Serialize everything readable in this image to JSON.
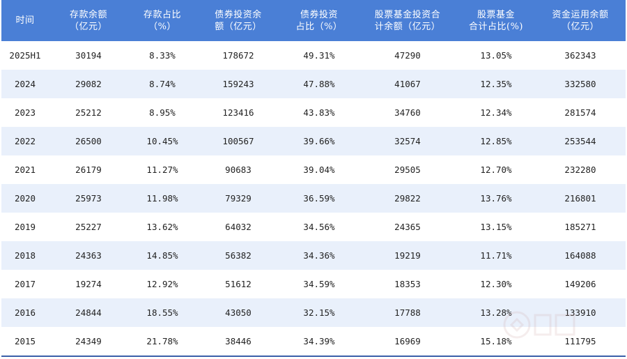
{
  "table": {
    "headers": [
      "时间",
      "存款余额\n（亿元）",
      "存款占比\n（%）",
      "债券投资余\n额（亿元）",
      "债券投资\n占比（%）",
      "股票基金投资合\n计余额（亿元）",
      "股票基金\n合计占比(%)",
      "资金运用余额\n（亿元）"
    ],
    "rows": [
      [
        "2025H1",
        "30194",
        "8.33%",
        "178672",
        "49.31%",
        "47290",
        "13.05%",
        "362343"
      ],
      [
        "2024",
        "29082",
        "8.74%",
        "159243",
        "47.88%",
        "41067",
        "12.35%",
        "332580"
      ],
      [
        "2023",
        "25212",
        "8.95%",
        "123416",
        "43.83%",
        "34760",
        "12.34%",
        "281574"
      ],
      [
        "2022",
        "26500",
        "10.45%",
        "100567",
        "39.66%",
        "32574",
        "12.85%",
        "253544"
      ],
      [
        "2021",
        "26179",
        "11.27%",
        "90683",
        "39.04%",
        "29505",
        "12.70%",
        "232280"
      ],
      [
        "2020",
        "25973",
        "11.98%",
        "79329",
        "36.59%",
        "29822",
        "13.76%",
        "216801"
      ],
      [
        "2019",
        "25227",
        "13.62%",
        "64032",
        "34.56%",
        "24365",
        "13.15%",
        "185271"
      ],
      [
        "2018",
        "24363",
        "14.85%",
        "56382",
        "34.36%",
        "19219",
        "11.71%",
        "164088"
      ],
      [
        "2017",
        "19274",
        "12.92%",
        "51612",
        "34.59%",
        "18353",
        "12.30%",
        "149206"
      ],
      [
        "2016",
        "24844",
        "18.55%",
        "43050",
        "32.15%",
        "17788",
        "13.28%",
        "133910"
      ],
      [
        "2015",
        "24349",
        "21.78%",
        "38446",
        "34.39%",
        "16969",
        "15.18%",
        "111795"
      ]
    ]
  },
  "colors": {
    "header_bg": "#4a7fd6",
    "stripe_bg": "#e9f0fb",
    "text": "#222222"
  },
  "watermark_icon": "logo-watermark-icon"
}
